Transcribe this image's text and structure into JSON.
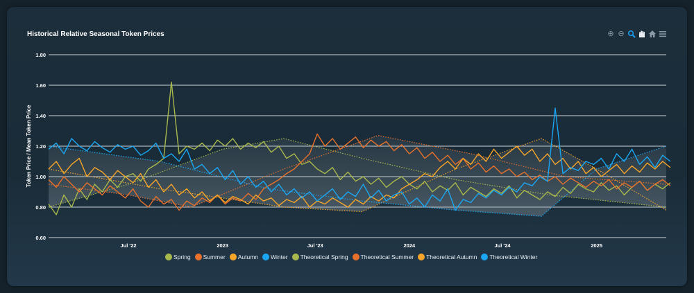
{
  "chart_data": {
    "type": "line",
    "title": "Historical Relative Seasonal Token Prices",
    "xlabel": "",
    "ylabel": "Token Price / Mean Token Price",
    "ylim": [
      0.6,
      1.8
    ],
    "yticks": [
      "0.60",
      "0.80",
      "1.00",
      "1.20",
      "1.40",
      "1.60",
      "1.80"
    ],
    "ytick_values": [
      0.6,
      0.8,
      1.0,
      1.2,
      1.4,
      1.6,
      1.8
    ],
    "xlim": [
      "2022-01-26",
      "2025-05-17"
    ],
    "xticks": [
      {
        "label": "Jul '22",
        "date": "2022-07-01"
      },
      {
        "label": "2023",
        "date": "2023-01-01"
      },
      {
        "label": "Jul '23",
        "date": "2023-07-01"
      },
      {
        "label": "2024",
        "date": "2024-01-01"
      },
      {
        "label": "Jul '24",
        "date": "2024-07-01"
      },
      {
        "label": "2025",
        "date": "2025-01-01"
      }
    ],
    "grid": true,
    "legend_position": "bottom-center",
    "series_start": "2022-01-26",
    "series_step_days": 15,
    "series": [
      {
        "name": "Spring",
        "color": "#a9b84b",
        "values": [
          0.82,
          0.75,
          0.88,
          0.8,
          0.92,
          0.85,
          0.95,
          0.9,
          0.98,
          0.93,
          1.0,
          1.02,
          0.97,
          1.05,
          1.08,
          1.12,
          1.62,
          1.15,
          1.2,
          1.18,
          1.22,
          1.17,
          1.24,
          1.2,
          1.25,
          1.18,
          1.22,
          1.19,
          1.23,
          1.16,
          1.2,
          1.12,
          1.15,
          1.08,
          1.1,
          1.05,
          1.02,
          1.06,
          0.98,
          1.03,
          0.97,
          1.0,
          0.95,
          0.99,
          0.93,
          0.97,
          1.0,
          0.95,
          0.92,
          0.97,
          0.9,
          0.94,
          0.91,
          0.96,
          0.88,
          0.93,
          0.9,
          0.87,
          0.92,
          0.89,
          0.94,
          0.86,
          0.91,
          0.88,
          0.85,
          0.9,
          0.87,
          0.93,
          0.89,
          0.95,
          0.92,
          0.9,
          0.96,
          0.91,
          0.94,
          0.88,
          0.93,
          0.97,
          0.91,
          0.95,
          0.92,
          0.96
        ]
      },
      {
        "name": "Summer",
        "color": "#e8702a",
        "values": [
          0.98,
          0.93,
          1.0,
          0.95,
          0.9,
          0.96,
          0.92,
          0.88,
          0.94,
          0.9,
          0.86,
          0.92,
          0.84,
          0.8,
          0.87,
          0.82,
          0.85,
          0.78,
          0.84,
          0.81,
          0.86,
          0.83,
          0.88,
          0.82,
          0.86,
          0.84,
          0.89,
          0.85,
          0.92,
          0.95,
          0.98,
          1.02,
          1.05,
          1.1,
          1.15,
          1.28,
          1.2,
          1.25,
          1.18,
          1.22,
          1.26,
          1.19,
          1.24,
          1.2,
          1.23,
          1.17,
          1.21,
          1.15,
          1.19,
          1.12,
          1.16,
          1.1,
          1.14,
          1.08,
          1.12,
          1.05,
          1.09,
          1.03,
          1.07,
          1.02,
          1.05,
          1.0,
          1.03,
          0.98,
          1.01,
          0.97,
          1.0,
          0.95,
          0.99,
          0.96,
          0.93,
          0.97,
          0.94,
          0.98,
          0.92,
          0.96,
          0.93,
          0.97,
          0.91,
          0.95,
          0.98,
          0.94
        ]
      },
      {
        "name": "Autumn",
        "color": "#f7a528",
        "values": [
          1.05,
          1.1,
          1.02,
          1.08,
          1.12,
          1.0,
          1.06,
          1.03,
          0.98,
          1.04,
          1.0,
          0.96,
          1.02,
          0.93,
          0.98,
          0.9,
          0.95,
          0.88,
          0.92,
          0.86,
          0.9,
          0.84,
          0.88,
          0.83,
          0.87,
          0.85,
          0.82,
          0.88,
          0.84,
          0.86,
          0.81,
          0.85,
          0.83,
          0.87,
          0.8,
          0.84,
          0.82,
          0.86,
          0.83,
          0.8,
          0.85,
          0.82,
          0.87,
          0.84,
          0.88,
          0.86,
          0.92,
          0.95,
          0.98,
          1.02,
          1.0,
          1.06,
          1.1,
          1.05,
          1.12,
          1.08,
          1.15,
          1.1,
          1.18,
          1.12,
          1.16,
          1.2,
          1.14,
          1.18,
          1.1,
          1.15,
          1.08,
          1.12,
          1.05,
          1.1,
          1.02,
          1.06,
          1.0,
          1.04,
          1.08,
          1.02,
          1.07,
          1.03,
          1.09,
          1.05,
          1.1,
          1.06
        ]
      },
      {
        "name": "Winter",
        "color": "#1aa6f2",
        "values": [
          1.18,
          1.22,
          1.15,
          1.25,
          1.2,
          1.17,
          1.23,
          1.19,
          1.16,
          1.21,
          1.18,
          1.2,
          1.14,
          1.17,
          1.22,
          1.12,
          1.15,
          1.1,
          1.18,
          1.05,
          1.08,
          1.02,
          1.06,
          0.98,
          1.04,
          0.95,
          1.0,
          0.93,
          0.97,
          0.9,
          0.95,
          0.88,
          0.92,
          0.86,
          0.9,
          0.84,
          0.88,
          0.92,
          0.85,
          0.9,
          0.87,
          0.95,
          0.86,
          0.91,
          0.84,
          0.88,
          0.9,
          0.82,
          0.86,
          0.8,
          0.88,
          0.84,
          0.92,
          0.78,
          0.85,
          0.83,
          0.89,
          0.86,
          0.91,
          0.88,
          0.93,
          0.9,
          0.96,
          0.94,
          1.0,
          0.97,
          1.45,
          1.02,
          1.06,
          1.04,
          1.1,
          1.08,
          1.12,
          1.05,
          1.15,
          1.1,
          1.18,
          1.08,
          1.13,
          1.06,
          1.14,
          1.1
        ]
      }
    ],
    "theoretical_series": [
      {
        "name": "Theoretical Spring",
        "color": "#a9b84b",
        "points": [
          [
            "2022-01-26",
            0.8
          ],
          [
            "2022-07-01",
            0.95
          ],
          [
            "2023-01-01",
            1.18
          ],
          [
            "2023-05-01",
            1.25
          ],
          [
            "2023-10-01",
            1.12
          ],
          [
            "2024-04-01",
            0.98
          ],
          [
            "2024-10-01",
            0.88
          ],
          [
            "2025-05-17",
            0.8
          ]
        ]
      },
      {
        "name": "Theoretical Summer",
        "color": "#e8702a",
        "points": [
          [
            "2022-01-26",
            0.95
          ],
          [
            "2022-07-01",
            0.88
          ],
          [
            "2022-11-01",
            0.8
          ],
          [
            "2023-05-01",
            1.05
          ],
          [
            "2023-11-01",
            1.27
          ],
          [
            "2024-05-01",
            1.15
          ],
          [
            "2024-11-01",
            1.0
          ],
          [
            "2025-05-17",
            0.95
          ]
        ]
      },
      {
        "name": "Theoretical Autumn",
        "color": "#f7a528",
        "points": [
          [
            "2022-01-26",
            1.05
          ],
          [
            "2022-09-01",
            0.92
          ],
          [
            "2023-05-01",
            0.8
          ],
          [
            "2023-10-01",
            0.77
          ],
          [
            "2024-04-01",
            1.05
          ],
          [
            "2024-09-15",
            1.25
          ],
          [
            "2025-01-01",
            1.05
          ],
          [
            "2025-05-17",
            0.78
          ]
        ]
      },
      {
        "name": "Theoretical Winter",
        "color": "#1aa6f2",
        "points": [
          [
            "2022-01-26",
            1.2
          ],
          [
            "2022-09-01",
            1.1
          ],
          [
            "2023-04-01",
            0.92
          ],
          [
            "2023-10-01",
            0.84
          ],
          [
            "2024-04-01",
            0.78
          ],
          [
            "2024-09-15",
            0.74
          ],
          [
            "2025-01-01",
            1.05
          ],
          [
            "2025-05-17",
            1.2
          ]
        ]
      }
    ]
  },
  "toolbar": {
    "zoom_in": "⊕",
    "zoom_out": "⊖",
    "zoom_select": "🔍",
    "pan": "✋",
    "reset": "⌂",
    "menu": "≡"
  }
}
